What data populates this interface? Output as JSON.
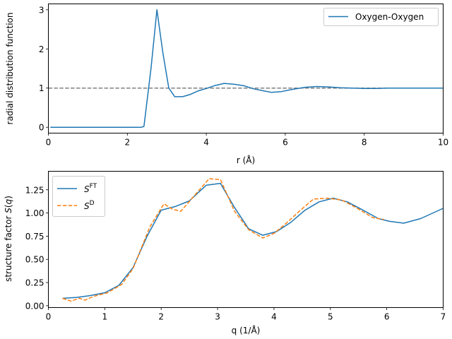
{
  "chart_data": [
    {
      "type": "line",
      "xlabel": "r (Å)",
      "ylabel": "radial distribution function",
      "xlim": [
        0,
        10
      ],
      "ylim": [
        -0.15,
        3.15
      ],
      "xticks": [
        0,
        2,
        4,
        6,
        8,
        10
      ],
      "xtick_labels": [
        "0",
        "2",
        "4",
        "6",
        "8",
        "10"
      ],
      "yticks": [
        0,
        1,
        2,
        3
      ],
      "ytick_labels": [
        "0",
        "1",
        "2",
        "3"
      ],
      "reference_line": {
        "y": 1,
        "style": "dashed",
        "color": "#808080"
      },
      "legend": {
        "position": "top-right"
      },
      "series": [
        {
          "name": "Oxygen-Oxygen",
          "color": "#1f77b4",
          "style": "solid",
          "x": [
            0.05,
            0.5,
            1.0,
            1.5,
            2.0,
            2.25,
            2.35,
            2.42,
            2.6,
            2.75,
            2.9,
            3.05,
            3.2,
            3.4,
            3.6,
            3.8,
            4.0,
            4.2,
            4.45,
            4.7,
            4.95,
            5.2,
            5.45,
            5.65,
            5.9,
            6.2,
            6.5,
            6.8,
            7.1,
            7.4,
            7.7,
            8.0,
            8.3,
            8.6,
            9.0,
            9.4,
            9.7,
            10.0
          ],
          "y": [
            0,
            0,
            0,
            0,
            0,
            0,
            0,
            0.02,
            1.5,
            3.0,
            1.9,
            1.0,
            0.78,
            0.78,
            0.84,
            0.93,
            0.99,
            1.06,
            1.12,
            1.1,
            1.06,
            0.98,
            0.93,
            0.89,
            0.91,
            0.97,
            1.02,
            1.04,
            1.03,
            1.01,
            1.0,
            0.99,
            0.99,
            1.0,
            1.0,
            1.0,
            1.0,
            1.0
          ]
        }
      ]
    },
    {
      "type": "line",
      "xlabel": "q (1/Å)",
      "ylabel": "structure factor S(q)",
      "ylabel_parts": [
        "structure factor ",
        "S",
        "(",
        "q",
        ")"
      ],
      "xlim": [
        0,
        7
      ],
      "ylim": [
        -0.02,
        1.45
      ],
      "xticks": [
        0,
        1,
        2,
        3,
        4,
        5,
        6,
        7
      ],
      "xtick_labels": [
        "0",
        "1",
        "2",
        "3",
        "4",
        "5",
        "6",
        "7"
      ],
      "yticks": [
        0.0,
        0.25,
        0.5,
        0.75,
        1.0,
        1.25
      ],
      "ytick_labels": [
        "0.00",
        "0.25",
        "0.50",
        "0.75",
        "1.00",
        "1.25"
      ],
      "legend": {
        "position": "top-left"
      },
      "series": [
        {
          "name": "S^FT",
          "name_base": "S",
          "name_sup": "FT",
          "color": "#1f77b4",
          "style": "solid",
          "x": [
            0.25,
            0.5,
            0.75,
            1.0,
            1.25,
            1.5,
            1.75,
            2.0,
            2.25,
            2.5,
            2.8,
            3.05,
            3.3,
            3.55,
            3.8,
            4.05,
            4.3,
            4.55,
            4.8,
            5.05,
            5.3,
            5.55,
            5.85,
            6.05,
            6.3,
            6.6,
            7.0
          ],
          "y": [
            0.08,
            0.09,
            0.11,
            0.14,
            0.22,
            0.41,
            0.75,
            1.03,
            1.07,
            1.13,
            1.3,
            1.32,
            1.06,
            0.83,
            0.76,
            0.8,
            0.9,
            1.03,
            1.12,
            1.16,
            1.12,
            1.04,
            0.94,
            0.91,
            0.89,
            0.94,
            1.05
          ]
        },
        {
          "name": "S^D",
          "name_base": "S",
          "name_sup": "D",
          "color": "#ff7f0e",
          "style": "dashed",
          "x": [
            0.25,
            0.4,
            0.55,
            0.65,
            0.8,
            1.05,
            1.3,
            1.5,
            1.8,
            2.05,
            2.2,
            2.35,
            2.55,
            2.85,
            3.05,
            3.3,
            3.55,
            3.8,
            4.0,
            4.2,
            4.45,
            4.7,
            4.95,
            5.2,
            5.45,
            5.75,
            5.95
          ],
          "y": [
            0.08,
            0.05,
            0.08,
            0.06,
            0.1,
            0.14,
            0.23,
            0.4,
            0.85,
            1.1,
            1.04,
            1.02,
            1.16,
            1.37,
            1.36,
            1.02,
            0.82,
            0.73,
            0.78,
            0.88,
            1.02,
            1.15,
            1.16,
            1.14,
            1.06,
            0.95,
            0.93
          ]
        }
      ]
    }
  ]
}
